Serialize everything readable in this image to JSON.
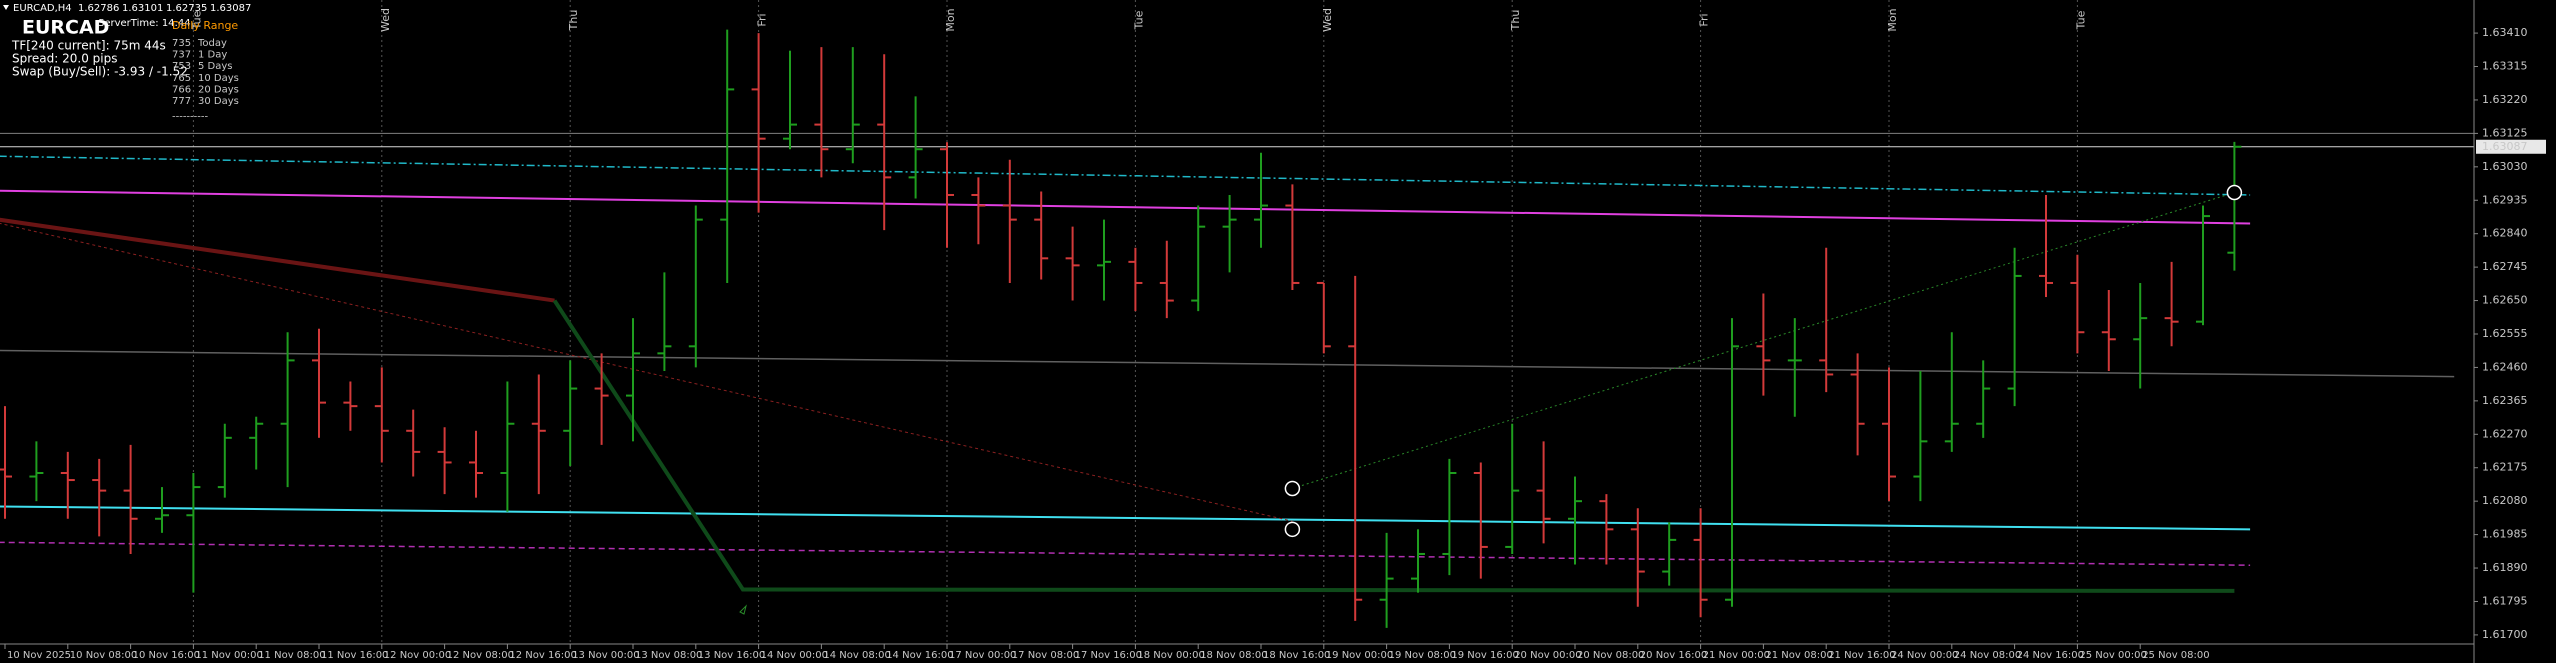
{
  "chart_data": {
    "type": "ohlc",
    "symbol_timeframe": "EURCAD,H4",
    "title": "EURCAD",
    "info": [
      "ServerTime: 14:44",
      "TF[240 current]: 75m 44s",
      "Spread: 20.0 pips",
      "Swap (Buy/Sell): -3.93 / -1.52"
    ],
    "daily_range": {
      "title": "Daily Range",
      "rows": [
        {
          "value": 735,
          "label": "Today"
        },
        {
          "value": 737,
          "label": "1 Day"
        },
        {
          "value": 753,
          "label": "5 Days"
        },
        {
          "value": 765,
          "label": "10 Days"
        },
        {
          "value": 766,
          "label": "20 Days"
        },
        {
          "value": 777,
          "label": "30 Days"
        }
      ],
      "footer": "----------"
    },
    "categories": [
      "10 Nov 2025",
      null,
      "10 Nov 08:00",
      null,
      "10 Nov 16:00",
      null,
      "11 Nov 00:00",
      null,
      "11 Nov 08:00",
      null,
      "11 Nov 16:00",
      null,
      "12 Nov 00:00",
      null,
      "12 Nov 08:00",
      null,
      "12 Nov 16:00",
      null,
      "13 Nov 00:00",
      null,
      "13 Nov 08:00",
      null,
      "13 Nov 16:00",
      null,
      "14 Nov 00:00",
      null,
      "14 Nov 08:00",
      null,
      "14 Nov 16:00",
      null,
      "17 Nov 00:00",
      null,
      "17 Nov 08:00",
      null,
      "17 Nov 16:00",
      null,
      "18 Nov 00:00",
      null,
      "18 Nov 08:00",
      null,
      "18 Nov 16:00",
      null,
      "19 Nov 00:00",
      null,
      "19 Nov 08:00",
      null,
      "19 Nov 16:00",
      null,
      "20 Nov 00:00",
      null,
      "20 Nov 08:00",
      null,
      "20 Nov 16:00",
      null,
      "21 Nov 00:00",
      null,
      "21 Nov 08:00",
      null,
      "21 Nov 16:00",
      null,
      "24 Nov 00:00",
      null,
      "24 Nov 08:00",
      null,
      "24 Nov 16:00",
      null,
      "25 Nov 00:00",
      null,
      "25 Nov 08:00",
      null,
      null,
      null
    ],
    "open": [
      1.6217,
      1.6215,
      1.6216,
      1.6214,
      1.6211,
      1.6203,
      1.6204,
      1.6212,
      1.6226,
      1.623,
      1.6248,
      1.6236,
      1.6235,
      1.6228,
      1.6222,
      1.6219,
      1.6216,
      1.623,
      1.6228,
      1.624,
      1.6238,
      1.625,
      1.6252,
      1.6288,
      1.6325,
      1.6311,
      1.6315,
      1.6308,
      1.6315,
      1.63,
      1.6308,
      1.6295,
      1.6292,
      1.6288,
      1.6277,
      1.6275,
      1.6276,
      1.627,
      1.6265,
      1.6286,
      1.6288,
      1.6292,
      1.627,
      1.6252,
      1.618,
      1.6186,
      1.6193,
      1.6216,
      1.6195,
      1.6211,
      1.6203,
      1.6208,
      1.62,
      1.6188,
      1.6197,
      1.618,
      1.6252,
      1.6248,
      1.6248,
      1.6244,
      1.623,
      1.6215,
      1.6225,
      1.623,
      1.624,
      1.6272,
      1.627,
      1.6256,
      1.6254,
      1.626,
      1.6259,
      1.62786
    ],
    "high": [
      1.6235,
      1.6225,
      1.6222,
      1.622,
      1.6224,
      1.6212,
      1.6216,
      1.623,
      1.6232,
      1.6256,
      1.6257,
      1.6242,
      1.6246,
      1.6234,
      1.6229,
      1.6228,
      1.6242,
      1.6244,
      1.6248,
      1.625,
      1.626,
      1.6273,
      1.6292,
      1.6342,
      1.6341,
      1.6336,
      1.6337,
      1.6337,
      1.6335,
      1.6323,
      1.631,
      1.63,
      1.6305,
      1.6296,
      1.6286,
      1.6288,
      1.628,
      1.6282,
      1.6292,
      1.6295,
      1.6307,
      1.6298,
      1.627,
      1.6272,
      1.6199,
      1.62,
      1.622,
      1.6219,
      1.623,
      1.6225,
      1.6215,
      1.621,
      1.6206,
      1.6202,
      1.6206,
      1.626,
      1.6267,
      1.626,
      1.628,
      1.625,
      1.6246,
      1.6245,
      1.6256,
      1.6248,
      1.628,
      1.6295,
      1.6278,
      1.6268,
      1.627,
      1.6276,
      1.6292,
      1.63101
    ],
    "low": [
      1.6203,
      1.6208,
      1.6203,
      1.6198,
      1.6193,
      1.6199,
      1.6182,
      1.6209,
      1.6217,
      1.6212,
      1.6226,
      1.6228,
      1.6219,
      1.6215,
      1.621,
      1.6209,
      1.6205,
      1.621,
      1.6218,
      1.6224,
      1.6225,
      1.6245,
      1.6246,
      1.627,
      1.629,
      1.6308,
      1.63,
      1.6304,
      1.6285,
      1.6294,
      1.628,
      1.6281,
      1.627,
      1.6271,
      1.6265,
      1.6265,
      1.6262,
      1.626,
      1.6262,
      1.6273,
      1.628,
      1.6268,
      1.625,
      1.6174,
      1.6172,
      1.6182,
      1.6187,
      1.6186,
      1.6193,
      1.6196,
      1.619,
      1.619,
      1.6178,
      1.6184,
      1.6175,
      1.6178,
      1.6238,
      1.6232,
      1.6239,
      1.6221,
      1.6208,
      1.6208,
      1.6222,
      1.6226,
      1.6235,
      1.6266,
      1.625,
      1.6245,
      1.624,
      1.6252,
      1.6258,
      1.62735
    ],
    "close": [
      1.6215,
      1.6216,
      1.6214,
      1.6211,
      1.6203,
      1.6204,
      1.6212,
      1.6226,
      1.623,
      1.6248,
      1.6236,
      1.6235,
      1.6228,
      1.6222,
      1.6219,
      1.6216,
      1.623,
      1.6228,
      1.624,
      1.6238,
      1.625,
      1.6252,
      1.6288,
      1.6325,
      1.6311,
      1.6315,
      1.6308,
      1.6315,
      1.63,
      1.6308,
      1.6295,
      1.6292,
      1.6288,
      1.6277,
      1.6275,
      1.6276,
      1.627,
      1.6265,
      1.6286,
      1.6288,
      1.6292,
      1.627,
      1.6252,
      1.618,
      1.6186,
      1.6193,
      1.6216,
      1.6195,
      1.6211,
      1.6203,
      1.6208,
      1.62,
      1.6188,
      1.6197,
      1.618,
      1.6252,
      1.6248,
      1.6248,
      1.6244,
      1.623,
      1.6215,
      1.6225,
      1.623,
      1.624,
      1.6272,
      1.627,
      1.6256,
      1.6254,
      1.626,
      1.6259,
      1.6289,
      1.63087
    ],
    "up_color": "#1f9e1f",
    "down_color": "#d33a3a",
    "ylim": [
      1.61677,
      1.63504
    ],
    "yticks": [
      {
        "value": 1.6341,
        "label": "1.63410"
      },
      1.63315,
      {
        "value": 1.6322,
        "label": "1.63220"
      },
      1.63125,
      {
        "value": 1.6303,
        "label": "1.63030"
      },
      1.62935,
      {
        "value": 1.6284,
        "label": "1.62840"
      },
      1.62745,
      {
        "value": 1.6265,
        "label": "1.62650"
      },
      1.62555,
      {
        "value": 1.6246,
        "label": "1.62460"
      },
      1.62365,
      {
        "value": 1.6227,
        "label": "1.62270"
      },
      1.62175,
      {
        "value": 1.6208,
        "label": "1.62080"
      },
      1.61985,
      {
        "value": 1.6189,
        "label": "1.61890"
      },
      1.61795,
      {
        "value": 1.617,
        "label": "1.61700"
      }
    ],
    "day_markers": {
      "x": [
        6,
        12,
        18,
        24,
        30,
        36,
        42,
        48,
        54,
        60,
        66
      ],
      "labels": [
        "Tue",
        "Wed",
        "Thu",
        "Fri",
        "Mon",
        "Tue",
        "Wed",
        "Thu",
        "Fri",
        "Mon",
        "Tue"
      ]
    },
    "overlays": [
      {
        "color": "#e040e0",
        "width": 2,
        "dash": "",
        "x": [
          -0.2,
          71.5
        ],
        "values": [
          1.62962,
          1.62869
        ]
      },
      {
        "color": "#20b8c8",
        "width": 1.5,
        "dash": "8 3 2 3",
        "x": [
          -0.2,
          71.5
        ],
        "values": [
          1.6306,
          1.6295
        ]
      },
      {
        "color": "#40e0f0",
        "width": 2,
        "dash": "",
        "x": [
          -0.2,
          71.5
        ],
        "values": [
          1.62065,
          1.62
        ]
      },
      {
        "color": "#b030b0",
        "width": 1.5,
        "dash": "6 4",
        "x": [
          -0.2,
          71.5
        ],
        "values": [
          1.61963,
          1.61898
        ]
      },
      {
        "color": "#606060",
        "width": 1.5,
        "dash": "",
        "x": [
          -0.2,
          78
        ],
        "values": [
          1.62508,
          1.62434
        ]
      },
      {
        "color": "#6a1414",
        "width": 4,
        "dash": "",
        "x": [
          -0.2,
          17.5
        ],
        "values": [
          1.6288,
          1.6265
        ]
      },
      {
        "color": "#8a2020",
        "width": 1,
        "dash": "3 3",
        "x": [
          -0.2,
          41
        ],
        "values": [
          1.6287,
          1.62023
        ]
      },
      {
        "color": "#0f4a1a",
        "width": 4,
        "dash": "",
        "x": [
          17.5,
          23.5,
          71
        ],
        "values": [
          1.6265,
          1.61829,
          1.61825
        ]
      },
      {
        "color": "#2a8a2a",
        "width": 1,
        "dash": "2 3",
        "x": [
          41,
          71
        ],
        "values": [
          1.62116,
          1.62957
        ]
      }
    ],
    "hlines": [
      {
        "value": 1.63087,
        "color": "#d8d8d8"
      },
      {
        "value": 1.63125,
        "color": "#808080"
      }
    ],
    "markers": [
      {
        "x": 41,
        "value": 1.62116
      },
      {
        "x": 41,
        "value": 1.62
      },
      {
        "x": 71,
        "value": 1.62957
      }
    ]
  }
}
